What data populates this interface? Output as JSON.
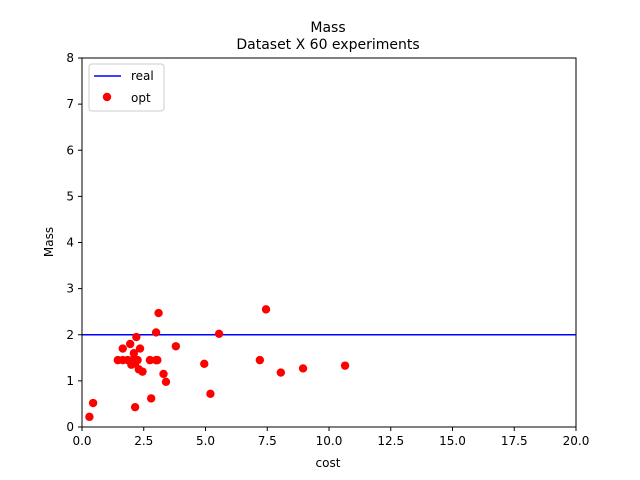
{
  "chart_data": {
    "type": "scatter",
    "title": "Mass",
    "subtitle": "Dataset X 60 experiments",
    "xlabel": "cost",
    "ylabel": "Mass",
    "xlim": [
      0,
      20
    ],
    "ylim": [
      0,
      8
    ],
    "xticks": [
      0,
      2.5,
      5,
      7.5,
      10,
      12.5,
      15,
      17.5,
      20
    ],
    "xtick_labels": [
      "0.0",
      "2.5",
      "5.0",
      "7.5",
      "10.0",
      "12.5",
      "15.0",
      "17.5",
      "20.0"
    ],
    "yticks": [
      0,
      1,
      2,
      3,
      4,
      5,
      6,
      7,
      8
    ],
    "ytick_labels": [
      "0",
      "1",
      "2",
      "3",
      "4",
      "5",
      "6",
      "7",
      "8"
    ],
    "grid": false,
    "legend_position": "top-left",
    "series": [
      {
        "name": "real",
        "kind": "hline",
        "color": "#0000ff",
        "y": 2.0
      },
      {
        "name": "opt",
        "kind": "scatter",
        "color": "#ff0000",
        "points": [
          {
            "x": 0.3,
            "y": 0.22
          },
          {
            "x": 0.45,
            "y": 0.52
          },
          {
            "x": 1.45,
            "y": 1.45
          },
          {
            "x": 1.65,
            "y": 1.45
          },
          {
            "x": 1.65,
            "y": 1.7
          },
          {
            "x": 1.85,
            "y": 1.45
          },
          {
            "x": 1.95,
            "y": 1.8
          },
          {
            "x": 2.0,
            "y": 1.35
          },
          {
            "x": 2.05,
            "y": 1.45
          },
          {
            "x": 2.1,
            "y": 1.6
          },
          {
            "x": 2.15,
            "y": 1.38
          },
          {
            "x": 2.15,
            "y": 0.43
          },
          {
            "x": 2.2,
            "y": 1.95
          },
          {
            "x": 2.25,
            "y": 1.45
          },
          {
            "x": 2.3,
            "y": 1.25
          },
          {
            "x": 2.35,
            "y": 1.7
          },
          {
            "x": 2.45,
            "y": 1.2
          },
          {
            "x": 2.75,
            "y": 1.45
          },
          {
            "x": 2.8,
            "y": 0.62
          },
          {
            "x": 3.0,
            "y": 1.45
          },
          {
            "x": 3.0,
            "y": 2.05
          },
          {
            "x": 3.05,
            "y": 1.45
          },
          {
            "x": 3.1,
            "y": 2.47
          },
          {
            "x": 3.3,
            "y": 1.15
          },
          {
            "x": 3.4,
            "y": 0.98
          },
          {
            "x": 3.8,
            "y": 1.75
          },
          {
            "x": 4.95,
            "y": 1.37
          },
          {
            "x": 5.2,
            "y": 0.72
          },
          {
            "x": 5.55,
            "y": 2.02
          },
          {
            "x": 7.2,
            "y": 1.45
          },
          {
            "x": 7.45,
            "y": 2.55
          },
          {
            "x": 8.05,
            "y": 1.18
          },
          {
            "x": 8.95,
            "y": 1.27
          },
          {
            "x": 10.65,
            "y": 1.33
          }
        ]
      }
    ]
  }
}
